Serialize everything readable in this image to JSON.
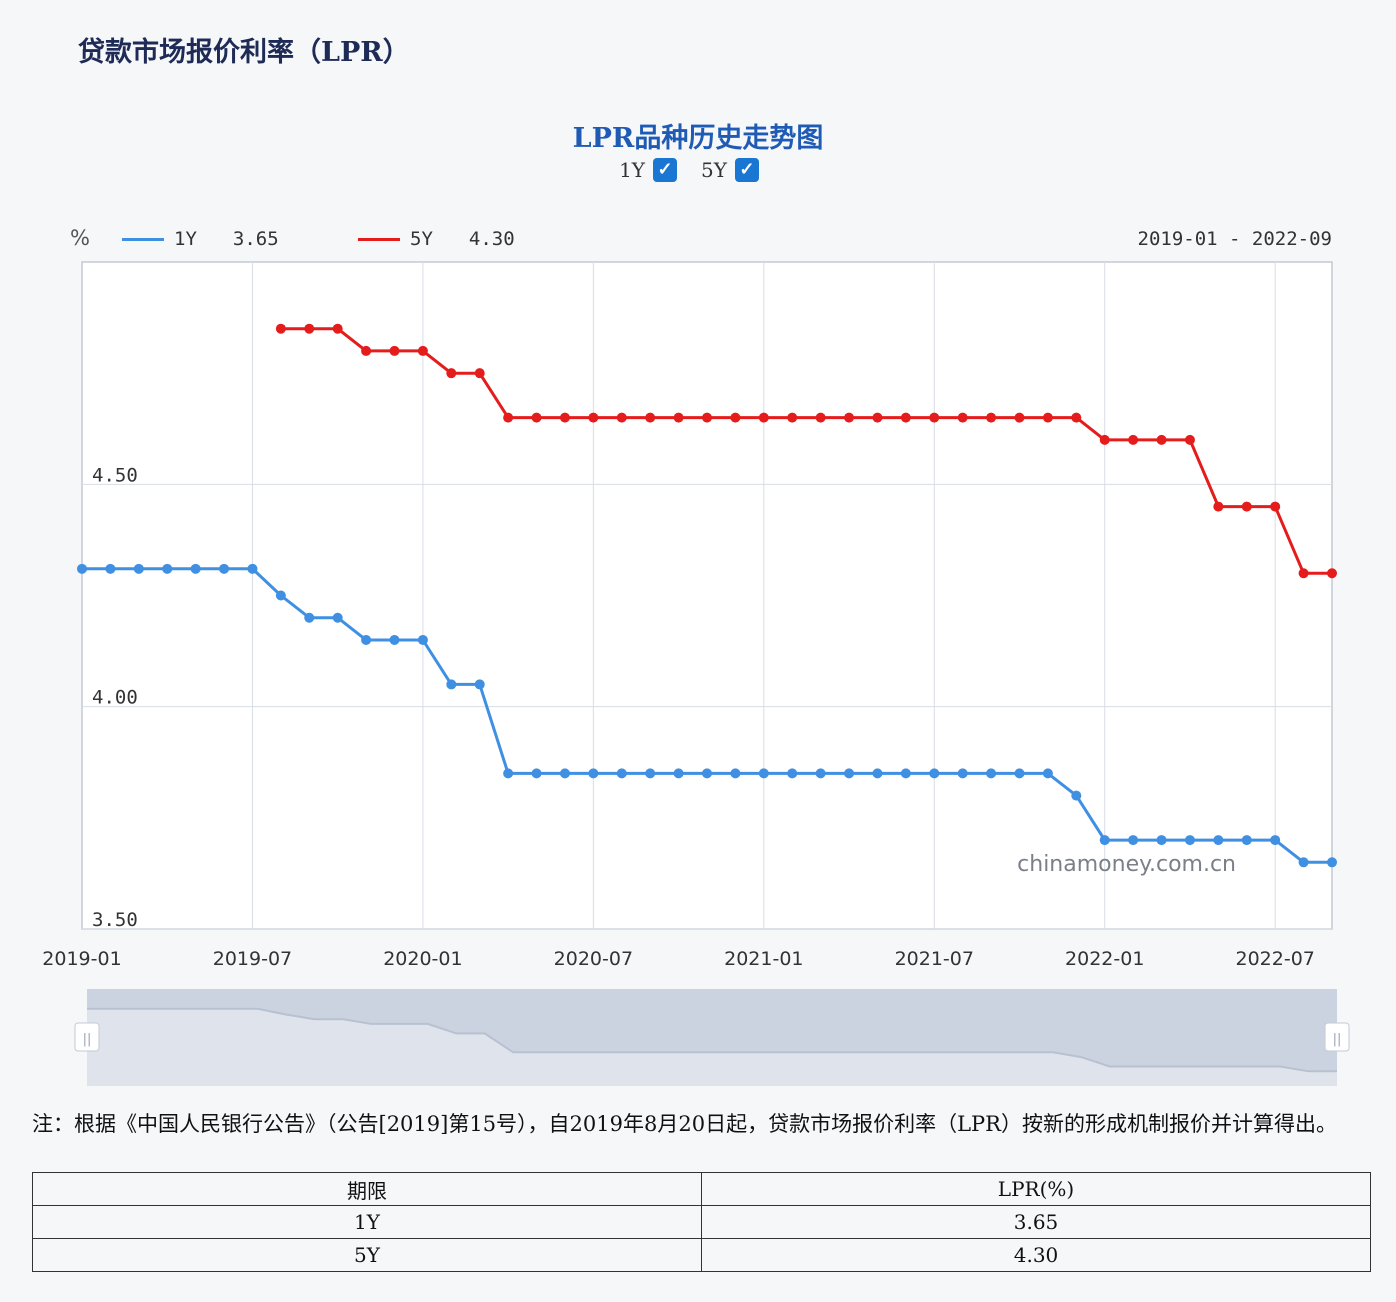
{
  "page_title": "贷款市场报价利率（LPR）",
  "toggles": [
    {
      "label": "1Y",
      "checked": true,
      "check_glyph": "✓"
    },
    {
      "label": "5Y",
      "checked": true,
      "check_glyph": "✓"
    }
  ],
  "legend": {
    "unit": "%",
    "items": [
      {
        "name": "1Y",
        "value": "3.65",
        "color": "#3f8fe3"
      },
      {
        "name": "5Y",
        "value": "4.30",
        "color": "#e51c1c"
      }
    ],
    "range": "2019-01 - 2022-09"
  },
  "watermark": "chinamoney.com.cn",
  "note": "注：根据《中国人民银行公告》（公告[2019]第15号），自2019年8月20日起，贷款市场报价利率（LPR）按新的形成机制报价并计算得出。",
  "table": {
    "headers": [
      "期限",
      "LPR(%)"
    ],
    "rows": [
      [
        "1Y",
        "3.65"
      ],
      [
        "5Y",
        "4.30"
      ]
    ]
  },
  "chart_data": {
    "type": "line",
    "title": "LPR品种历史走势图",
    "ylabel": "%",
    "xlabel": "",
    "x": [
      "2019-01",
      "2019-02",
      "2019-03",
      "2019-04",
      "2019-05",
      "2019-06",
      "2019-07",
      "2019-08",
      "2019-09",
      "2019-10",
      "2019-11",
      "2019-12",
      "2020-01",
      "2020-02",
      "2020-03",
      "2020-04",
      "2020-05",
      "2020-06",
      "2020-07",
      "2020-08",
      "2020-09",
      "2020-10",
      "2020-11",
      "2020-12",
      "2021-01",
      "2021-02",
      "2021-03",
      "2021-04",
      "2021-05",
      "2021-06",
      "2021-07",
      "2021-08",
      "2021-09",
      "2021-10",
      "2021-11",
      "2021-12",
      "2022-01",
      "2022-02",
      "2022-03",
      "2022-04",
      "2022-05",
      "2022-06",
      "2022-07",
      "2022-08",
      "2022-09"
    ],
    "series": [
      {
        "name": "1Y",
        "color": "#3f8fe3",
        "values": [
          4.31,
          4.31,
          4.31,
          4.31,
          4.31,
          4.31,
          4.31,
          4.25,
          4.2,
          4.2,
          4.15,
          4.15,
          4.15,
          4.05,
          4.05,
          3.85,
          3.85,
          3.85,
          3.85,
          3.85,
          3.85,
          3.85,
          3.85,
          3.85,
          3.85,
          3.85,
          3.85,
          3.85,
          3.85,
          3.85,
          3.85,
          3.85,
          3.85,
          3.85,
          3.85,
          3.8,
          3.7,
          3.7,
          3.7,
          3.7,
          3.7,
          3.7,
          3.7,
          3.65,
          3.65
        ]
      },
      {
        "name": "5Y",
        "color": "#e51c1c",
        "values": [
          null,
          null,
          null,
          null,
          null,
          null,
          null,
          4.85,
          4.85,
          4.85,
          4.8,
          4.8,
          4.8,
          4.75,
          4.75,
          4.65,
          4.65,
          4.65,
          4.65,
          4.65,
          4.65,
          4.65,
          4.65,
          4.65,
          4.65,
          4.65,
          4.65,
          4.65,
          4.65,
          4.65,
          4.65,
          4.65,
          4.65,
          4.65,
          4.65,
          4.65,
          4.6,
          4.6,
          4.6,
          4.6,
          4.45,
          4.45,
          4.45,
          4.3,
          4.3
        ]
      }
    ],
    "y_ticks": [
      "3.50",
      "4.00",
      "4.50"
    ],
    "x_ticks": [
      "2019-01",
      "2019-07",
      "2020-01",
      "2020-07",
      "2021-01",
      "2021-07",
      "2022-01",
      "2022-07"
    ],
    "ylim": [
      3.5,
      5.0
    ],
    "grid": true,
    "legend_position": "top-left",
    "data_zoom": {
      "start": "2019-01",
      "end": "2022-09",
      "handle_glyph": "||"
    }
  }
}
